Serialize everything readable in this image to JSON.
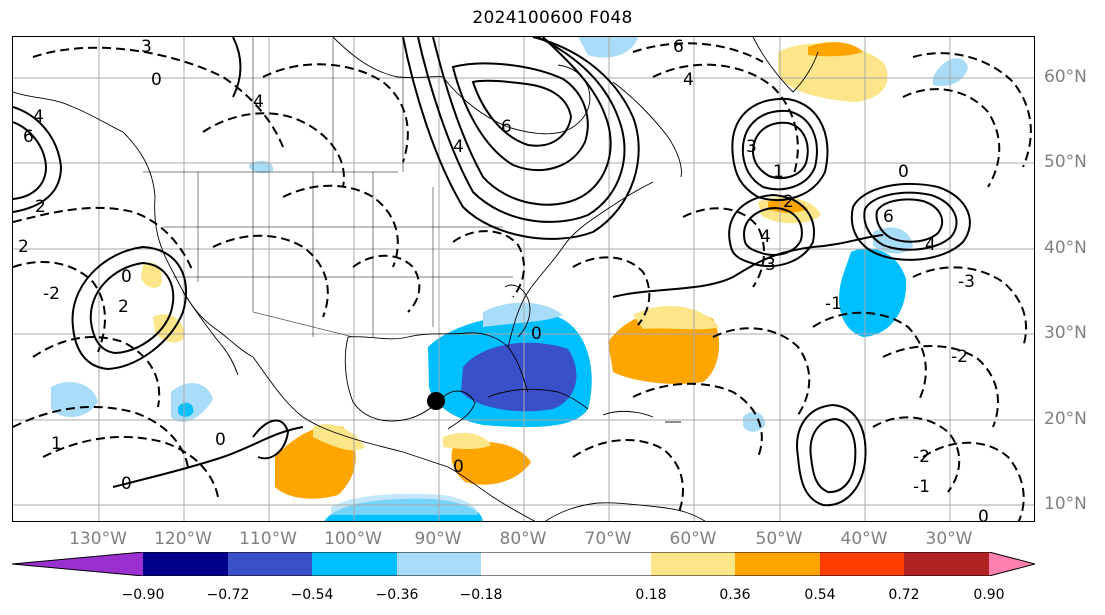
{
  "title": "2024100600 F048",
  "lat_labels": [
    "60°N",
    "50°N",
    "40°N",
    "30°N",
    "20°N",
    "10°N"
  ],
  "lon_labels": [
    "130°W",
    "120°W",
    "110°W",
    "100°W",
    "90°W",
    "80°W",
    "70°W",
    "60°W",
    "50°W",
    "40°W",
    "30°W"
  ],
  "colorbar": {
    "ticks": [
      "−0.90",
      "−0.72",
      "−0.54",
      "−0.36",
      "−0.18",
      "0.18",
      "0.36",
      "0.54",
      "0.72",
      "0.90"
    ],
    "colors": [
      "#9b30d0",
      "#00008b",
      "#3a50c8",
      "#00bfff",
      "#a8dcf8",
      "#ffffff",
      "#fde68a",
      "#ffa500",
      "#ff3d00",
      "#b22222",
      "#ff80b0"
    ]
  },
  "contour_labels": {
    "top_left_3": "3",
    "top_left_0": "0",
    "left_4": "4",
    "left_6": "6",
    "left_2": "2",
    "gulf_alaska_2": "2",
    "canada_4": "4",
    "hudson_6": "6",
    "hudson_4": "4",
    "north_6": "6",
    "greenland_4": "4",
    "atlantic_3a": "3",
    "atlantic_4": "4",
    "atlantic_3b": "3",
    "atlantic_2": "2",
    "atlantic_6": "6",
    "atlantic_4b": "4",
    "atlantic_neg3": "-3",
    "atlantic_neg1": "-1",
    "atlantic_neg2": "-2",
    "tropical_0": "0",
    "tropical_1": "1",
    "pacific_2": "2",
    "pacific_0": "0",
    "pacific_neg2": "-2",
    "mexico_0": "0",
    "carib_0": "0",
    "carib_1": "1",
    "us_0": "0",
    "far_right_neg2": "-2",
    "far_right_neg1": "-1",
    "far_right_0": "0",
    "gulf_0": "0"
  }
}
